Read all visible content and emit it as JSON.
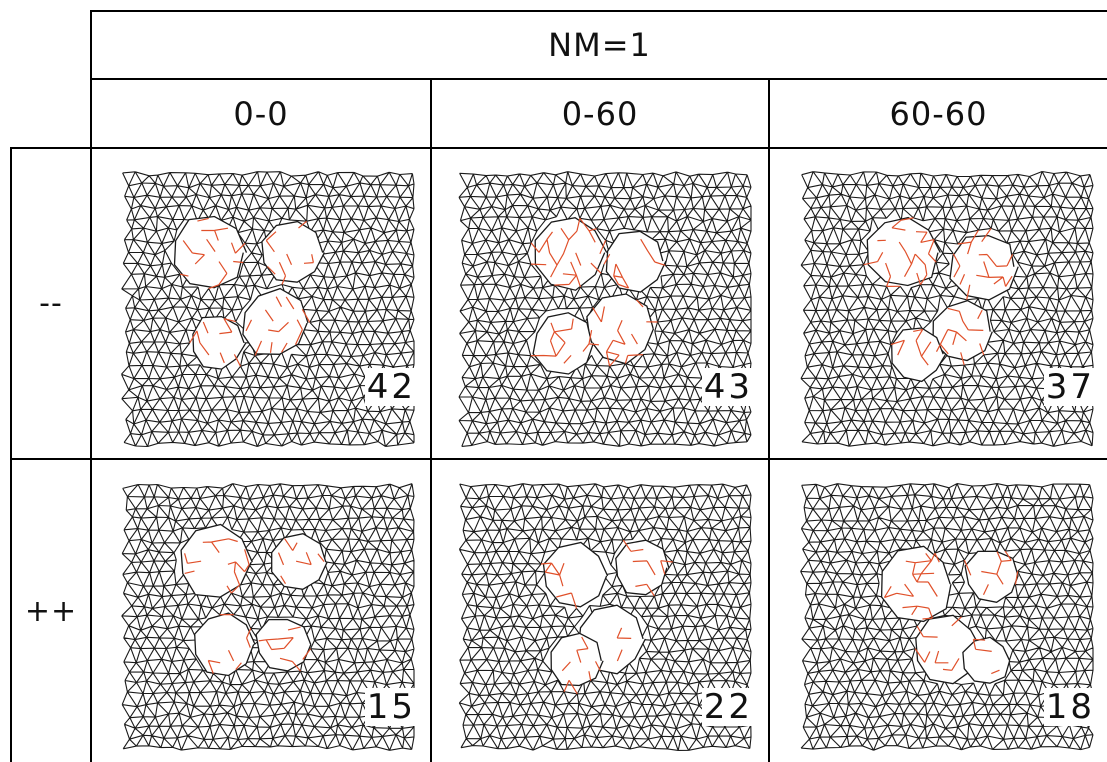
{
  "header": {
    "title": "NM=1"
  },
  "columns": [
    "0-0",
    "0-60",
    "60-60"
  ],
  "rows": [
    {
      "label": "--",
      "counts": [
        "42",
        "43",
        "37"
      ]
    },
    {
      "label": "++",
      "counts": [
        "15",
        "22",
        "18"
      ]
    }
  ],
  "colors": {
    "mesh": "#1a1a1a",
    "highlight": "#e0502a",
    "grid_lines": "#000000"
  }
}
